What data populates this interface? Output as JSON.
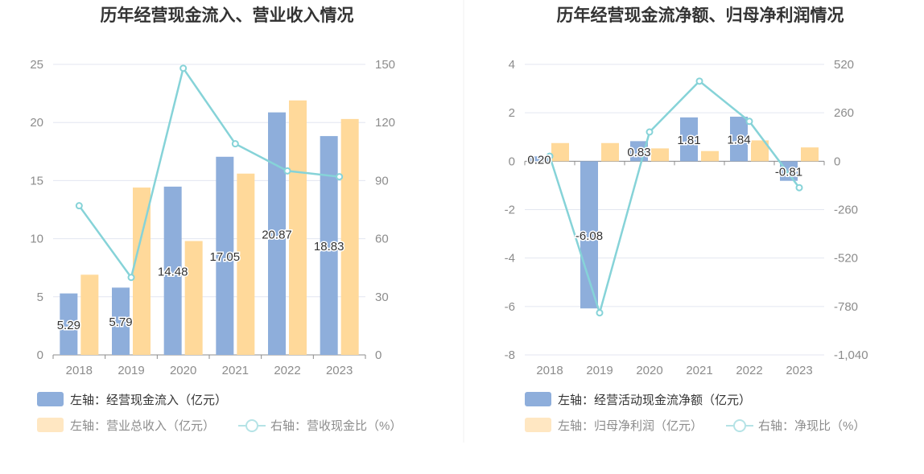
{
  "colors": {
    "bar1": "#8eaedb",
    "bar2": "#ffd99a",
    "line": "#86d3d8",
    "grid": "#e3e6f0",
    "axis": "#8c8c8c",
    "legend_active": "#333333",
    "legend_muted": "#8c8c8c"
  },
  "chart_data": [
    {
      "type": "bar",
      "title": "历年经营现金流入、营业收入情况",
      "categories": [
        "2018",
        "2019",
        "2020",
        "2021",
        "2022",
        "2023"
      ],
      "left_axis": {
        "ticks": [
          "0",
          "5",
          "10",
          "15",
          "20",
          "25"
        ],
        "ylim": [
          0,
          25
        ]
      },
      "right_axis": {
        "ticks": [
          "0",
          "30",
          "60",
          "90",
          "120",
          "150"
        ],
        "ylim": [
          0,
          150
        ]
      },
      "series": [
        {
          "name": "左轴：经营现金流入（亿元）",
          "axis": "left",
          "kind": "bar",
          "values": [
            5.29,
            5.79,
            14.48,
            17.05,
            20.87,
            18.83
          ],
          "labels": [
            "5.29",
            "5.79",
            "14.48",
            "17.05",
            "20.87",
            "18.83"
          ]
        },
        {
          "name": "左轴：营业总收入（亿元）",
          "axis": "left",
          "kind": "bar",
          "values": [
            6.9,
            14.4,
            9.8,
            15.6,
            21.9,
            20.3
          ]
        },
        {
          "name": "右轴：营收现金比（%）",
          "axis": "right",
          "kind": "line",
          "values": [
            77,
            40,
            148,
            109,
            95,
            92
          ]
        }
      ],
      "legend": [
        "左轴：经营现金流入（亿元）",
        "左轴：营业总收入（亿元）",
        "右轴：营收现金比（%）"
      ]
    },
    {
      "type": "bar",
      "title": "历年经营现金流净额、归母净利润情况",
      "categories": [
        "2018",
        "2019",
        "2020",
        "2021",
        "2022",
        "2023"
      ],
      "left_axis": {
        "ticks": [
          "-8",
          "-6",
          "-4",
          "-2",
          "0",
          "2",
          "4"
        ],
        "ylim": [
          -8,
          4
        ]
      },
      "right_axis": {
        "ticks": [
          "-1,040",
          "-780",
          "-520",
          "-260",
          "0",
          "260",
          "520"
        ],
        "ylim": [
          -1040,
          520
        ]
      },
      "series": [
        {
          "name": "左轴：经营活动现金流净额（亿元）",
          "axis": "left",
          "kind": "bar",
          "values": [
            0.2,
            -6.08,
            0.83,
            1.81,
            1.84,
            -0.81
          ],
          "labels": [
            "0.20",
            "-6.08",
            "0.83",
            "1.81",
            "1.84",
            "-0.81"
          ]
        },
        {
          "name": "左轴：归母净利润（亿元）",
          "axis": "left",
          "kind": "bar",
          "values": [
            0.75,
            0.75,
            0.53,
            0.42,
            0.86,
            0.57
          ]
        },
        {
          "name": "右轴：净现比（%）",
          "axis": "right",
          "kind": "line",
          "values": [
            27,
            -814,
            157,
            430,
            214,
            -142
          ]
        }
      ],
      "legend": [
        "左轴：经营活动现金流净额（亿元）",
        "左轴：归母净利润（亿元）",
        "右轴：净现比（%）"
      ]
    }
  ]
}
